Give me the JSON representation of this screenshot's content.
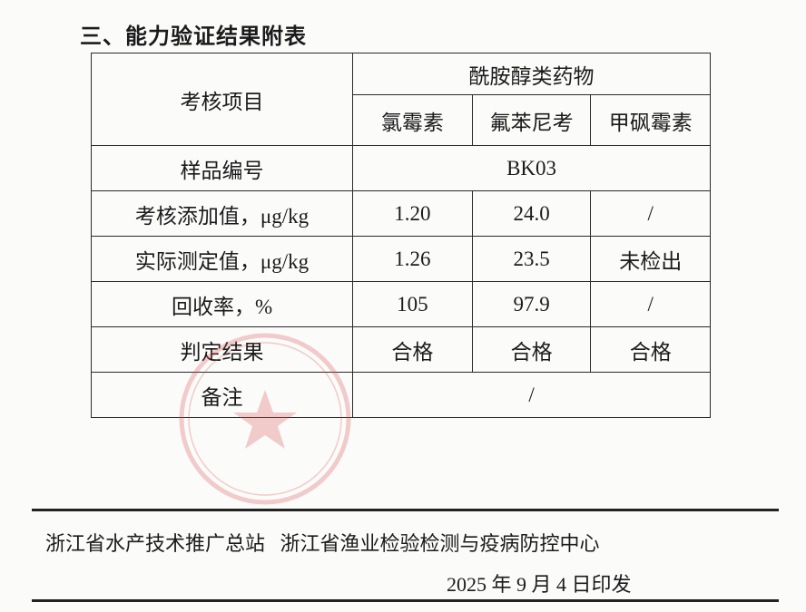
{
  "section_title": "三、能力验证结果附表",
  "table": {
    "item_header": "考核项目",
    "group_header": "酰胺醇类药物",
    "drugs": [
      "氯霉素",
      "氟苯尼考",
      "甲砜霉素"
    ],
    "sample_row": {
      "label": "样品编号",
      "value": "BK03"
    },
    "rows": [
      {
        "label": "考核添加值，μg/kg",
        "values": [
          "1.20",
          "24.0",
          "/"
        ]
      },
      {
        "label": "实际测定值，μg/kg",
        "values": [
          "1.26",
          "23.5",
          "未检出"
        ]
      },
      {
        "label": "回收率，%",
        "values": [
          "105",
          "97.9",
          "/"
        ]
      },
      {
        "label": "判定结果",
        "values": [
          "合格",
          "合格",
          "合格"
        ]
      }
    ],
    "remark_row": {
      "label": "备注",
      "value": "/"
    }
  },
  "footer": {
    "issuer_1": "浙江省水产技术推广总站",
    "issuer_2": "浙江省渔业检验检测与疫病防控中心",
    "date": "2025 年 9 月 4 日印发"
  },
  "stamp_color": "#d9534f"
}
